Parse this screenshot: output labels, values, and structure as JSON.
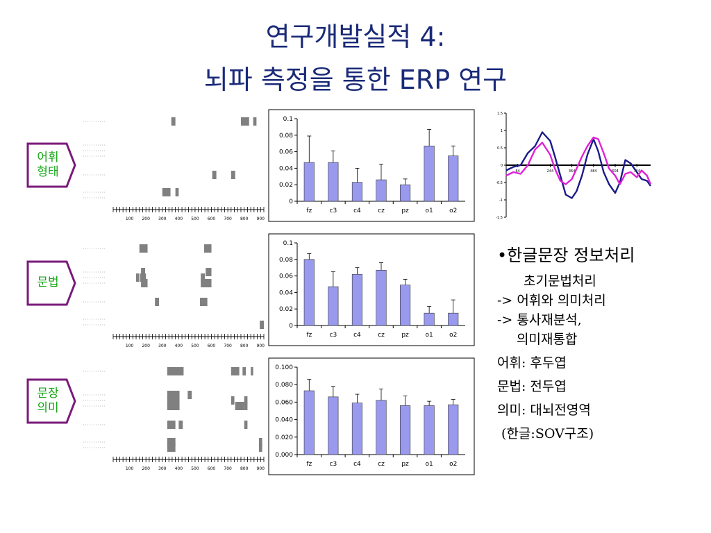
{
  "title": {
    "line1": "연구개발실적 4:",
    "line2": "뇌파 측정을 통한 ERP 연구"
  },
  "tags": [
    {
      "line1": "어휘",
      "line2": "형태"
    },
    {
      "line1": "문법",
      "line2": ""
    },
    {
      "line1": "문장",
      "line2": "의미"
    }
  ],
  "raster": {
    "ticks": [
      "100",
      "200",
      "300",
      "400",
      "500",
      "600",
      "700",
      "800",
      "900"
    ],
    "blocks": [
      [
        {
          "row": 0,
          "t0": 355,
          "t1": 380
        },
        {
          "row": 0,
          "t0": 780,
          "t1": 830
        },
        {
          "row": 0,
          "t0": 855,
          "t1": 875
        },
        {
          "row": 4,
          "t0": 605,
          "t1": 630
        },
        {
          "row": 4,
          "t0": 720,
          "t1": 745
        },
        {
          "row": 5,
          "t0": 300,
          "t1": 350
        },
        {
          "row": 5,
          "t0": 380,
          "t1": 400
        }
      ],
      [
        {
          "row": 0,
          "t0": 160,
          "t1": 210
        },
        {
          "row": 0,
          "t0": 555,
          "t1": 600
        },
        {
          "row": 1,
          "t0": 170,
          "t1": 195
        },
        {
          "row": 1,
          "t0": 565,
          "t1": 600
        },
        {
          "row": 2,
          "t0": 140,
          "t1": 160
        },
        {
          "row": 2,
          "t0": 165,
          "t1": 200
        },
        {
          "row": 2,
          "t0": 535,
          "t1": 560
        },
        {
          "row": 3,
          "t0": 170,
          "t1": 210
        },
        {
          "row": 3,
          "t0": 535,
          "t1": 600
        },
        {
          "row": 4,
          "t0": 255,
          "t1": 280
        },
        {
          "row": 4,
          "t0": 530,
          "t1": 575
        },
        {
          "row": 6,
          "t0": 895,
          "t1": 920
        }
      ],
      [
        {
          "row": 0,
          "t0": 330,
          "t1": 430
        },
        {
          "row": 0,
          "t0": 720,
          "t1": 770
        },
        {
          "row": 0,
          "t0": 790,
          "t1": 810
        },
        {
          "row": 0,
          "t0": 840,
          "t1": 855
        },
        {
          "row": 1,
          "t0": 330,
          "t1": 405
        },
        {
          "row": 1,
          "t0": 455,
          "t1": 480
        },
        {
          "row": 2,
          "t0": 330,
          "t1": 405
        },
        {
          "row": 2,
          "t0": 720,
          "t1": 740
        },
        {
          "row": 2,
          "t0": 800,
          "t1": 820
        },
        {
          "row": 3,
          "t0": 330,
          "t1": 405
        },
        {
          "row": 3,
          "t0": 745,
          "t1": 800
        },
        {
          "row": 3,
          "t0": 800,
          "t1": 820
        },
        {
          "row": 4,
          "t0": 330,
          "t1": 380
        },
        {
          "row": 4,
          "t0": 400,
          "t1": 425
        },
        {
          "row": 4,
          "t0": 800,
          "t1": 820
        },
        {
          "row": 5,
          "t0": 330,
          "t1": 380
        },
        {
          "row": 5,
          "t0": 890,
          "t1": 910
        },
        {
          "row": 6,
          "t0": 330,
          "t1": 380
        },
        {
          "row": 6,
          "t0": 890,
          "t1": 910
        }
      ]
    ]
  },
  "chart_data": [
    {
      "type": "bar",
      "categories": [
        "fz",
        "c3",
        "c4",
        "cz",
        "pz",
        "o1",
        "o2"
      ],
      "values": [
        0.047,
        0.047,
        0.023,
        0.026,
        0.02,
        0.067,
        0.055
      ],
      "errors": [
        0.032,
        0.014,
        0.017,
        0.019,
        0.007,
        0.02,
        0.012
      ],
      "ylim": [
        0,
        0.1
      ],
      "yticks": [
        "0",
        "0.02",
        "0.04",
        "0.06",
        "0.08",
        "0.1"
      ]
    },
    {
      "type": "bar",
      "categories": [
        "fz",
        "c3",
        "c4",
        "cz",
        "pz",
        "o1",
        "o2"
      ],
      "values": [
        0.08,
        0.047,
        0.062,
        0.067,
        0.049,
        0.015,
        0.015
      ],
      "errors": [
        0.007,
        0.018,
        0.008,
        0.009,
        0.007,
        0.008,
        0.016
      ],
      "ylim": [
        0,
        0.1
      ],
      "yticks": [
        "0",
        "0.02",
        "0.04",
        "0.06",
        "0.08",
        "0.1"
      ]
    },
    {
      "type": "bar",
      "categories": [
        "fz",
        "c3",
        "c4",
        "cz",
        "pz",
        "o1",
        "o2"
      ],
      "values": [
        0.073,
        0.066,
        0.059,
        0.062,
        0.056,
        0.056,
        0.057
      ],
      "errors": [
        0.013,
        0.012,
        0.01,
        0.013,
        0.011,
        0.005,
        0.006
      ],
      "ylim": [
        0,
        0.1
      ],
      "yticks": [
        "0.000",
        "0.020",
        "0.040",
        "0.060",
        "0.080",
        "0.100"
      ]
    },
    {
      "type": "line",
      "yticks": [
        "1.5",
        "1",
        "0.5",
        "0",
        "-0.5",
        "-1",
        "-1.5"
      ],
      "xticks": [
        "64",
        "244",
        "364",
        "484",
        "604",
        "724"
      ],
      "ylim": [
        -1.5,
        1.5
      ],
      "series": [
        {
          "color": "#1a1a8a",
          "x": [
            0,
            40,
            80,
            120,
            160,
            200,
            244,
            270,
            300,
            330,
            364,
            390,
            420,
            450,
            484,
            510,
            540,
            570,
            604,
            630,
            660,
            690,
            724,
            750,
            780,
            800
          ],
          "values": [
            -0.15,
            -0.05,
            0.0,
            0.35,
            0.55,
            0.95,
            0.7,
            0.25,
            -0.3,
            -0.85,
            -0.95,
            -0.75,
            -0.3,
            0.3,
            0.75,
            0.4,
            -0.2,
            -0.55,
            -0.8,
            -0.5,
            0.15,
            0.05,
            -0.2,
            -0.4,
            -0.45,
            -0.6
          ]
        },
        {
          "color": "#e020d8",
          "x": [
            0,
            40,
            80,
            120,
            160,
            200,
            244,
            270,
            300,
            330,
            364,
            390,
            420,
            450,
            484,
            510,
            540,
            570,
            604,
            630,
            660,
            690,
            724,
            750,
            780,
            800
          ],
          "values": [
            -0.3,
            -0.2,
            -0.25,
            0.0,
            0.45,
            0.65,
            0.3,
            -0.1,
            -0.45,
            -0.55,
            -0.4,
            -0.1,
            0.25,
            0.55,
            0.8,
            0.75,
            0.35,
            -0.1,
            -0.3,
            -0.55,
            -0.25,
            -0.2,
            -0.35,
            -0.15,
            -0.3,
            -0.55
          ]
        }
      ]
    }
  ],
  "bullets": {
    "main": "•한글문장 정보처리",
    "lines": [
      "초기문법처리",
      "-> 어휘와 의미처리",
      "-> 통사재분석,",
      "의미재통합",
      "어휘: 후두엽",
      "문법: 전두엽",
      "의미: 대뇌전영역",
      " (한글:SOV구조)"
    ]
  },
  "colors": {
    "title": "#1a2a78",
    "tag_border": "#7a1a7a",
    "tag_text": "#16a516",
    "bar": "#9999ee",
    "raster_block": "#808080"
  }
}
